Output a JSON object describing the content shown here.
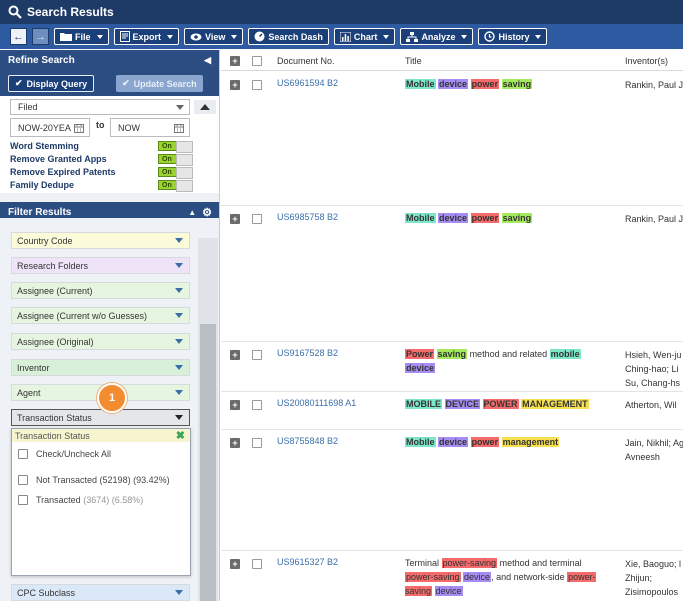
{
  "window": {
    "title": "Search Results"
  },
  "toolbar": {
    "file_label": "File",
    "export_label": "Export",
    "view_label": "View",
    "search_dash_label": "Search Dash",
    "chart_label": "Chart",
    "analyze_label": "Analyze",
    "history_label": "History"
  },
  "refine": {
    "header": "Refine Search",
    "display_query_label": "Display Query",
    "update_search_label": "Update Search",
    "date_type_value": "Filed",
    "date_from_value": "NOW-20YEA",
    "date_to_label": "to",
    "date_to_value": "NOW",
    "toggles": [
      {
        "label": "Word Stemming",
        "state": "On"
      },
      {
        "label": "Remove Granted Apps",
        "state": "On"
      },
      {
        "label": "Remove Expired Patents",
        "state": "On"
      },
      {
        "label": "Family Dedupe",
        "state": "On"
      }
    ]
  },
  "filter": {
    "header": "Filter Results",
    "items": [
      {
        "label": "Country Code",
        "color": "#fbfbd9"
      },
      {
        "label": "Research Folders",
        "color": "#efe3f7"
      },
      {
        "label": "Assignee (Current)",
        "color": "#e6f5df"
      },
      {
        "label": "Assignee (Current w/o Guesses)",
        "color": "#e6f5df"
      },
      {
        "label": "Assignee (Original)",
        "color": "#e6f5df"
      },
      {
        "label": "Inventor",
        "color": "#d9f0d8"
      },
      {
        "label": "Agent",
        "color": "#e6f5df"
      },
      {
        "label": "Transaction Status",
        "color": "#e4e6ea"
      },
      {
        "label": "CPC Subclass",
        "color": "#dbe8f7"
      }
    ],
    "dropdown": {
      "title": "Transaction Status",
      "check_all_label": "Check/Uncheck All",
      "options": [
        {
          "label": "Not Transacted",
          "count": "(52198)",
          "pct": "(93.42%)"
        },
        {
          "label": "Transacted",
          "count": "(3674)",
          "pct": "(6.58%)"
        }
      ]
    },
    "badge": "1"
  },
  "results": {
    "columns": {
      "doc": "Document No.",
      "title": "Title",
      "inventor": "Inventor(s)"
    },
    "rows": [
      {
        "doc": "US6961594 B2",
        "inventor": "Rankin, Paul J"
      },
      {
        "doc": "US6985758 B2",
        "inventor": "Rankin, Paul J"
      },
      {
        "doc": "US9167528 B2",
        "inventor": "Hsieh, Wen-ju\nChing-hao; Li\nSu, Chang-hs"
      },
      {
        "doc": "US20080111698 A1",
        "inventor": "Atherton, Wil"
      },
      {
        "doc": "US8755848 B2",
        "inventor": "Jain, Nikhil; Ag\nAvneesh"
      },
      {
        "doc": "US9615327 B2",
        "inventor": "Xie, Baoguo; l\nZhijun;\nZisimopoulos"
      }
    ],
    "titles": {
      "r1": [
        "Mobile",
        "device",
        "power",
        "saving"
      ],
      "r2": [
        "Mobile",
        "device",
        "power",
        "saving"
      ],
      "r3": [
        "Power",
        "saving",
        "method and related",
        "mobile",
        "device"
      ],
      "r4": [
        "MOBILE",
        "DEVICE",
        "POWER",
        "MANAGEMENT"
      ],
      "r5": [
        "Mobile",
        "device",
        "power",
        "management"
      ],
      "r6": [
        "Terminal",
        "power-saving",
        "method and terminal",
        "power-saving",
        "device",
        ", and network-side",
        "power-saving",
        "device"
      ]
    }
  }
}
